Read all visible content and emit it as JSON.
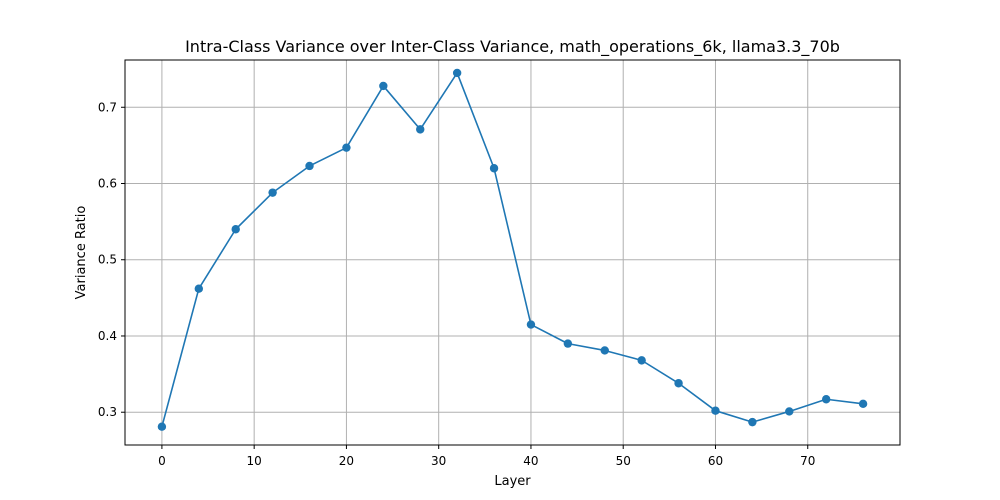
{
  "chart_data": {
    "type": "line",
    "title": "Intra-Class Variance over Inter-Class Variance, math_operations_6k, llama3.3_70b",
    "xlabel": "Layer",
    "ylabel": "Variance Ratio",
    "xlim": [
      -4,
      80
    ],
    "ylim": [
      0.257,
      0.762
    ],
    "xticks": [
      0,
      10,
      20,
      30,
      40,
      50,
      60,
      70
    ],
    "yticks": [
      0.3,
      0.4,
      0.5,
      0.6,
      0.7
    ],
    "grid": true,
    "marker": "circle",
    "color": "#1f77b4",
    "series": [
      {
        "x": [
          0,
          4,
          8,
          12,
          16,
          20,
          24,
          28,
          32,
          36,
          40,
          44,
          48,
          52,
          56,
          60,
          64,
          68,
          72,
          76
        ],
        "values": [
          0.281,
          0.462,
          0.54,
          0.588,
          0.623,
          0.647,
          0.728,
          0.671,
          0.745,
          0.62,
          0.415,
          0.39,
          0.381,
          0.368,
          0.338,
          0.302,
          0.287,
          0.301,
          0.317,
          0.311
        ]
      }
    ]
  }
}
